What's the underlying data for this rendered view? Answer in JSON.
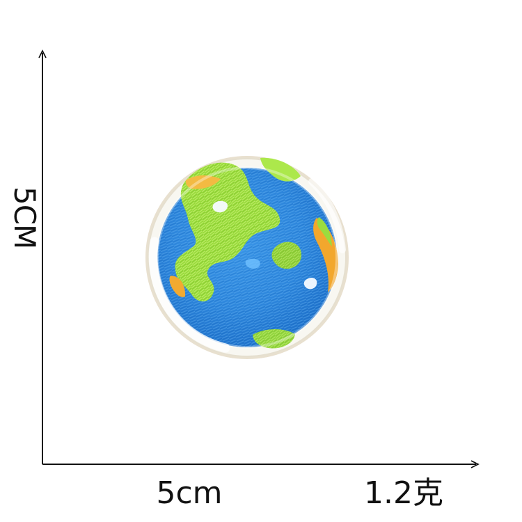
{
  "labels": {
    "height": "5CM",
    "width": "5cm",
    "weight": "1.2克"
  },
  "product": {
    "image_subject": "earth-embroidered-patch-icon"
  },
  "colors": {
    "background": "#ffffff",
    "axis": "#111111",
    "ocean": "#2f88dd",
    "ocean_dark": "#1c6ec8",
    "land": "#98dc3b",
    "land_light": "#b5ec57",
    "land_dark": "#75bb2e",
    "sand": "#f4b338",
    "border": "#f7f5ee",
    "shadow": "#cdbf9f"
  }
}
